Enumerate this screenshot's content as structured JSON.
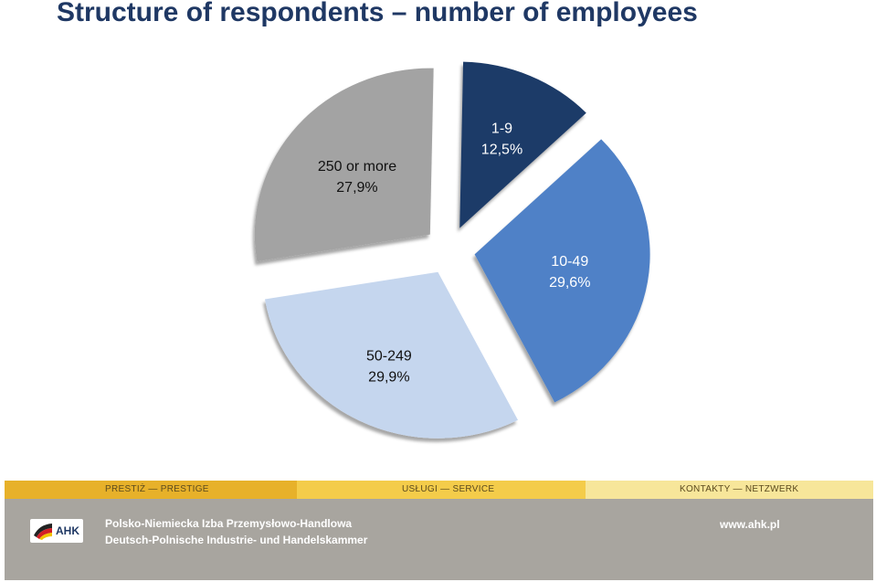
{
  "title": "Structure of respondents – number of employees",
  "chart_data": {
    "type": "pie",
    "title": "Structure of respondents – number of employees",
    "slices": [
      {
        "label": "1-9",
        "value": 12.5,
        "value_label": "12,5%",
        "color": "#1c3a68"
      },
      {
        "label": "10-49",
        "value": 29.6,
        "value_label": "29,6%",
        "color": "#4f81c7"
      },
      {
        "label": "50-249",
        "value": 29.9,
        "value_label": "29,9%",
        "color": "#c5d6ee"
      },
      {
        "label": "250 or more",
        "value": 27.9,
        "value_label": "27,9%",
        "color": "#a3a3a3"
      }
    ],
    "exploded": true,
    "legend": "none"
  },
  "footer": {
    "bar": [
      "PRESTIŻ — PRESTIGE",
      "USŁUGI — SERVICE",
      "KONTAKTY — NETZWERK"
    ],
    "logo_text": "AHK",
    "org_name_pl": "Polsko-Niemiecka Izba Przemysłowo-Handlowa",
    "org_name_de": "Deutsch-Polnische Industrie- und Handelskammer",
    "website": "www.ahk.pl"
  }
}
